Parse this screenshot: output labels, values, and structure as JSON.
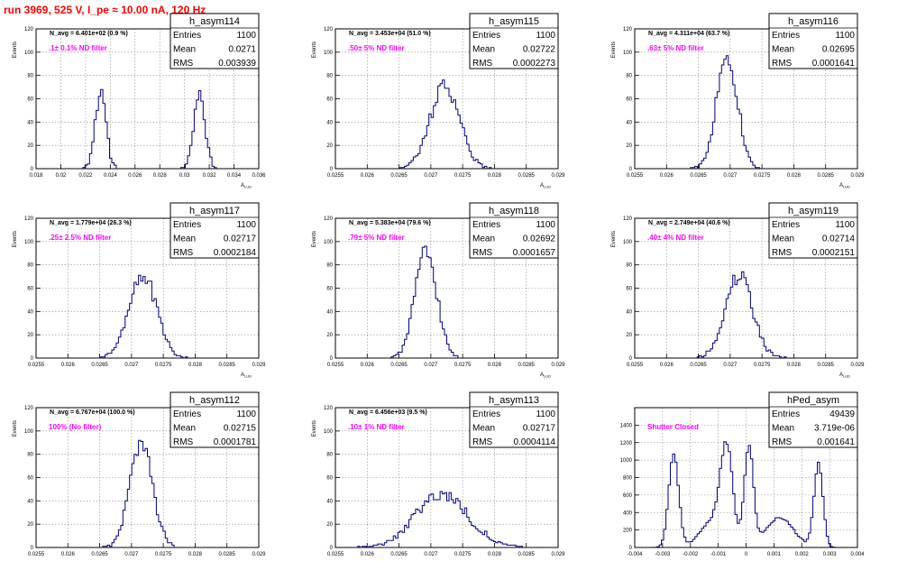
{
  "header": {
    "title": "run 3969,   525 V, I_pe ≈ 10.00 nA, 120 Hz"
  },
  "colors": {
    "histogram": "#00007f",
    "filter_text": "#ff00ff",
    "title": "#ff0000",
    "grid": "#888888",
    "axis": "#000000"
  },
  "stat_labels": {
    "entries": "Entries",
    "mean": "Mean",
    "rms": "RMS"
  },
  "chart_data": [
    {
      "type": "histogram",
      "name": "h_asym114",
      "entries": "1100",
      "mean": "0.0271",
      "rms": "0.003939",
      "navg_label": "N_avg = 6.401e+02 (0.9 %)",
      "filter_label": ".1± 0.1% ND filter",
      "xlabel": "A",
      "xlabel_sub": "LUD",
      "ylabel": "Events",
      "xlim": [
        0.018,
        0.036
      ],
      "ylim": [
        0,
        120
      ],
      "xticks": [
        "0.018",
        "0.02",
        "0.022",
        "0.024",
        "0.026",
        "0.028",
        "0.03",
        "0.032",
        "0.034",
        "0.036"
      ],
      "yticks": [
        "0",
        "20",
        "40",
        "60",
        "80",
        "100",
        "120"
      ],
      "peaks": [
        {
          "center": 0.0232,
          "sigma": 0.00045,
          "height": 65,
          "count": 550
        },
        {
          "center": 0.0312,
          "sigma": 0.00045,
          "height": 66,
          "count": 550
        }
      ],
      "bin_width": 0.00018,
      "seed": 11
    },
    {
      "type": "histogram",
      "name": "h_asym115",
      "entries": "1100",
      "mean": "0.02722",
      "rms": "0.0002273",
      "navg_label": "N_avg = 3.453e+04 (51.0 %)",
      "filter_label": ".50± 5% ND filter",
      "xlabel": "A",
      "xlabel_sub": "LUD",
      "ylabel": "Events",
      "xlim": [
        0.0255,
        0.029
      ],
      "ylim": [
        0,
        120
      ],
      "xticks": [
        "0.0255",
        "0.026",
        "0.0265",
        "0.027",
        "0.0275",
        "0.028",
        "0.0285",
        "0.029"
      ],
      "yticks": [
        "0",
        "20",
        "40",
        "60",
        "80",
        "100",
        "120"
      ],
      "peaks": [
        {
          "center": 0.02722,
          "sigma": 0.000227,
          "height": 72,
          "count": 1100
        }
      ],
      "bin_width": 3.5e-05,
      "seed": 22
    },
    {
      "type": "histogram",
      "name": "h_asym116",
      "entries": "1100",
      "mean": "0.02695",
      "rms": "0.0001641",
      "navg_label": "N_avg = 4.311e+04 (63.7 %)",
      "filter_label": ".63± 5% ND filter",
      "xlabel": "A",
      "xlabel_sub": "LUD",
      "ylabel": "Events",
      "xlim": [
        0.0255,
        0.029
      ],
      "ylim": [
        0,
        120
      ],
      "xticks": [
        "0.0255",
        "0.026",
        "0.0265",
        "0.027",
        "0.0275",
        "0.028",
        "0.0285",
        "0.029"
      ],
      "yticks": [
        "0",
        "20",
        "40",
        "60",
        "80",
        "100",
        "120"
      ],
      "peaks": [
        {
          "center": 0.02695,
          "sigma": 0.000164,
          "height": 98,
          "count": 1100
        }
      ],
      "bin_width": 3.5e-05,
      "seed": 33
    },
    {
      "type": "histogram",
      "name": "h_asym117",
      "entries": "1100",
      "mean": "0.02717",
      "rms": "0.0002184",
      "navg_label": "N_avg = 1.779e+04 (26.3 %)",
      "filter_label": ".25± 2.5% ND filter",
      "xlabel": "A",
      "xlabel_sub": "LUD",
      "ylabel": "Events",
      "xlim": [
        0.0255,
        0.029
      ],
      "ylim": [
        0,
        120
      ],
      "xticks": [
        "0.0255",
        "0.026",
        "0.0265",
        "0.027",
        "0.0275",
        "0.028",
        "0.0285",
        "0.029"
      ],
      "yticks": [
        "0",
        "20",
        "40",
        "60",
        "80",
        "100",
        "120"
      ],
      "peaks": [
        {
          "center": 0.02717,
          "sigma": 0.000218,
          "height": 72,
          "count": 1100
        }
      ],
      "bin_width": 3.5e-05,
      "seed": 44
    },
    {
      "type": "histogram",
      "name": "h_asym118",
      "entries": "1100",
      "mean": "0.02692",
      "rms": "0.0001657",
      "navg_label": "N_avg = 5.383e+04 (79.6 %)",
      "filter_label": ".79± 5% ND filter",
      "xlabel": "A",
      "xlabel_sub": "LUD",
      "ylabel": "Events",
      "xlim": [
        0.0255,
        0.029
      ],
      "ylim": [
        0,
        120
      ],
      "xticks": [
        "0.0255",
        "0.026",
        "0.0265",
        "0.027",
        "0.0275",
        "0.028",
        "0.0285",
        "0.029"
      ],
      "yticks": [
        "0",
        "20",
        "40",
        "60",
        "80",
        "100",
        "120"
      ],
      "peaks": [
        {
          "center": 0.02692,
          "sigma": 0.000166,
          "height": 96,
          "count": 1100
        }
      ],
      "bin_width": 3.5e-05,
      "seed": 55
    },
    {
      "type": "histogram",
      "name": "h_asym119",
      "entries": "1100",
      "mean": "0.02714",
      "rms": "0.0002151",
      "navg_label": "N_avg = 2.749e+04 (40.6 %)",
      "filter_label": ".40± 4% ND filter",
      "xlabel": "A",
      "xlabel_sub": "LUD",
      "ylabel": "Events",
      "xlim": [
        0.0255,
        0.029
      ],
      "ylim": [
        0,
        120
      ],
      "xticks": [
        "0.0255",
        "0.026",
        "0.0265",
        "0.027",
        "0.0275",
        "0.028",
        "0.0285",
        "0.029"
      ],
      "yticks": [
        "0",
        "20",
        "40",
        "60",
        "80",
        "100",
        "120"
      ],
      "peaks": [
        {
          "center": 0.02714,
          "sigma": 0.000215,
          "height": 70,
          "count": 1100
        }
      ],
      "bin_width": 3.5e-05,
      "seed": 66
    },
    {
      "type": "histogram",
      "name": "h_asym112",
      "entries": "1100",
      "mean": "0.02715",
      "rms": "0.0001781",
      "navg_label": "N_avg = 6.767e+04 (100.0 %)",
      "filter_label": "100% (No filter)",
      "xlabel": "A",
      "xlabel_sub": "LUD",
      "ylabel": "Events",
      "xlim": [
        0.0255,
        0.029
      ],
      "ylim": [
        0,
        120
      ],
      "xticks": [
        "0.0255",
        "0.026",
        "0.0265",
        "0.027",
        "0.0275",
        "0.028",
        "0.0285",
        "0.029"
      ],
      "yticks": [
        "0",
        "20",
        "40",
        "60",
        "80",
        "100",
        "120"
      ],
      "peaks": [
        {
          "center": 0.02715,
          "sigma": 0.000178,
          "height": 90,
          "count": 1100
        }
      ],
      "bin_width": 3.5e-05,
      "seed": 77
    },
    {
      "type": "histogram",
      "name": "h_asym113",
      "entries": "1100",
      "mean": "0.02717",
      "rms": "0.0004114",
      "navg_label": "N_avg = 6.456e+03 (9.5 %)",
      "filter_label": ".10± 1% ND filter",
      "xlabel": "A",
      "xlabel_sub": "LUD",
      "ylabel": "Events",
      "xlim": [
        0.0255,
        0.029
      ],
      "ylim": [
        0,
        120
      ],
      "xticks": [
        "0.0255",
        "0.026",
        "0.0265",
        "0.027",
        "0.0275",
        "0.028",
        "0.0285",
        "0.029"
      ],
      "yticks": [
        "0",
        "20",
        "40",
        "60",
        "80",
        "100",
        "120"
      ],
      "peaks": [
        {
          "center": 0.02717,
          "sigma": 0.000411,
          "height": 46,
          "count": 1100
        }
      ],
      "bin_width": 3.5e-05,
      "seed": 88
    },
    {
      "type": "histogram",
      "name": "hPed_asym",
      "entries": "49439",
      "mean": "3.719e-06",
      "rms": "0.001641",
      "navg_label": "",
      "filter_label": "Shutter Closed",
      "xlabel": "",
      "xlabel_sub": "",
      "ylabel": "",
      "xlim": [
        -0.004,
        0.004
      ],
      "ylim": [
        0,
        1600
      ],
      "xticks": [
        "-0.004",
        "-0.003",
        "-0.002",
        "-0.001",
        "0",
        "0.001",
        "0.002",
        "0.003",
        "0.004"
      ],
      "yticks": [
        "0",
        "200",
        "400",
        "600",
        "800",
        "1000",
        "1200",
        "1400"
      ],
      "peaks": [
        {
          "center": -0.0026,
          "sigma": 0.00018,
          "height": 1050,
          "count": 9000
        },
        {
          "center": -0.0007,
          "sigma": 0.00022,
          "height": 1050,
          "count": 11000
        },
        {
          "center": 0.0001,
          "sigma": 0.00016,
          "height": 1150,
          "count": 11000
        },
        {
          "center": 0.0026,
          "sigma": 0.00016,
          "height": 950,
          "count": 8000
        },
        {
          "center": -0.0012,
          "sigma": 0.00045,
          "height": 300,
          "count": 5000
        },
        {
          "center": 0.0012,
          "sigma": 0.0005,
          "height": 340,
          "count": 5439
        }
      ],
      "bin_width": 8e-05,
      "seed": 99
    }
  ]
}
